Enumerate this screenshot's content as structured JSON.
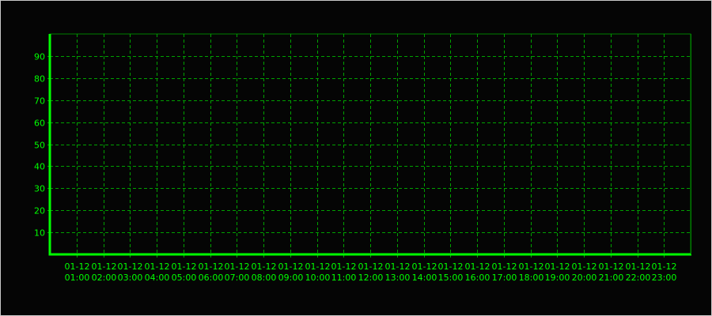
{
  "chart_data": {
    "type": "line",
    "title": "",
    "xlabel": "",
    "ylabel": "",
    "ylim": [
      0,
      100
    ],
    "xlim_hours": [
      0,
      24
    ],
    "y_ticks": [
      10,
      20,
      30,
      40,
      50,
      60,
      70,
      80,
      90
    ],
    "x_ticks": [
      [
        "01-12",
        "01:00"
      ],
      [
        "01-12",
        "02:00"
      ],
      [
        "01-12",
        "03:00"
      ],
      [
        "01-12",
        "04:00"
      ],
      [
        "01-12",
        "05:00"
      ],
      [
        "01-12",
        "06:00"
      ],
      [
        "01-12",
        "07:00"
      ],
      [
        "01-12",
        "08:00"
      ],
      [
        "01-12",
        "09:00"
      ],
      [
        "01-12",
        "10:00"
      ],
      [
        "01-12",
        "11:00"
      ],
      [
        "01-12",
        "12:00"
      ],
      [
        "01-12",
        "13:00"
      ],
      [
        "01-12",
        "14:00"
      ],
      [
        "01-12",
        "15:00"
      ],
      [
        "01-12",
        "16:00"
      ],
      [
        "01-12",
        "17:00"
      ],
      [
        "01-12",
        "18:00"
      ],
      [
        "01-12",
        "19:00"
      ],
      [
        "01-12",
        "20:00"
      ],
      [
        "01-12",
        "21:00"
      ],
      [
        "01-12",
        "22:00"
      ],
      [
        "01-12",
        "23:00"
      ]
    ],
    "series": [],
    "grid": true,
    "colors": {
      "background": "#050505",
      "axis": "#00ff00",
      "grid": "#00a000",
      "text": "#00ff00",
      "frame": "#008000"
    }
  }
}
